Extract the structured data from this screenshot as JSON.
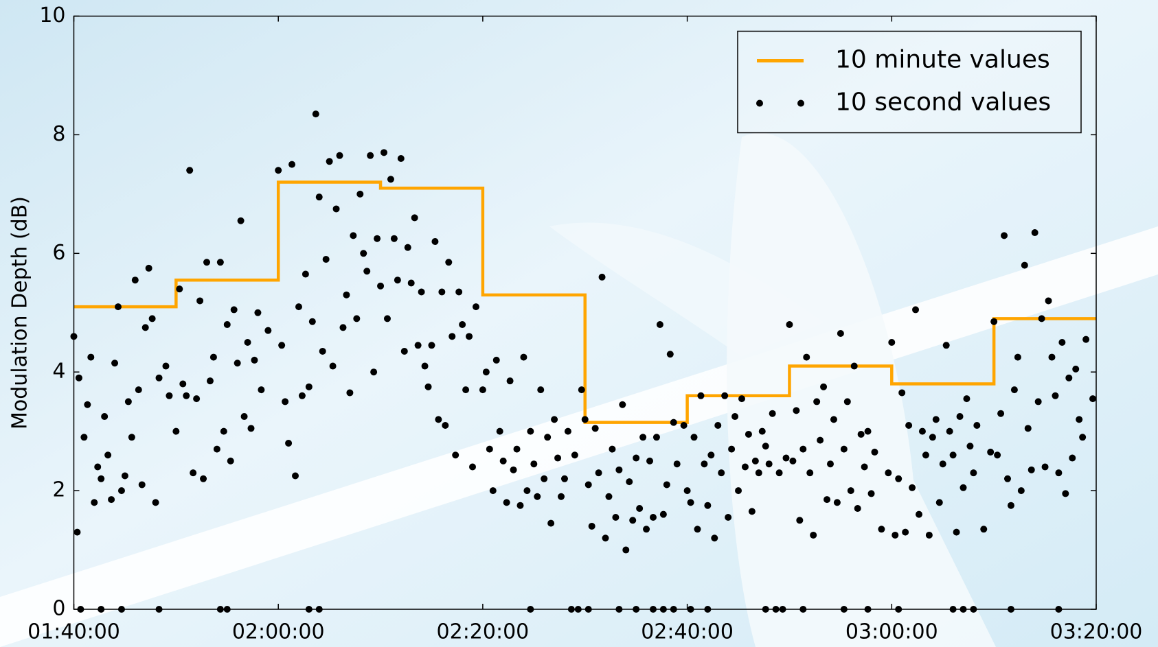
{
  "chart_data": {
    "type": "scatter",
    "y_label": "Modulation Depth (dB)",
    "xlim": [
      "01:40:00",
      "03:20:00"
    ],
    "xticks": [
      "01:40:00",
      "02:00:00",
      "02:20:00",
      "02:40:00",
      "03:00:00",
      "03:20:00"
    ],
    "ylim": [
      0,
      10
    ],
    "yticks": [
      0,
      2,
      4,
      6,
      8,
      10
    ],
    "grid": false,
    "legend": "upper right",
    "series": [
      {
        "name": "10 minute values",
        "type": "step",
        "color": "#ffa500",
        "x": [
          "01:40:00",
          "01:50:00",
          "02:00:00",
          "02:10:00",
          "02:20:00",
          "02:30:00",
          "02:40:00",
          "02:50:00",
          "03:00:00",
          "03:10:00",
          "03:20:00"
        ],
        "values": [
          5.1,
          5.55,
          7.2,
          7.1,
          5.3,
          3.15,
          3.6,
          4.1,
          3.8,
          4.9,
          4.9
        ]
      },
      {
        "name": "10 second values",
        "type": "scatter",
        "color": "#000000",
        "x": [
          "01:40:00",
          "01:40:20",
          "01:40:30",
          "01:41:00",
          "01:41:20",
          "01:41:40",
          "01:42:00",
          "01:42:20",
          "01:42:40",
          "01:43:00",
          "01:43:20",
          "01:43:40",
          "01:44:00",
          "01:44:20",
          "01:44:40",
          "01:45:00",
          "01:45:20",
          "01:45:40",
          "01:46:00",
          "01:46:20",
          "01:46:40",
          "01:47:00",
          "01:47:20",
          "01:47:40",
          "01:48:00",
          "01:48:20",
          "01:49:00",
          "01:49:20",
          "01:50:00",
          "01:50:20",
          "01:50:40",
          "01:51:00",
          "01:51:20",
          "01:51:40",
          "01:52:00",
          "01:52:20",
          "01:52:40",
          "01:53:00",
          "01:53:20",
          "01:53:40",
          "01:54:00",
          "01:54:20",
          "01:54:40",
          "01:55:00",
          "01:55:20",
          "01:55:40",
          "01:56:00",
          "01:56:20",
          "01:56:40",
          "01:57:00",
          "01:57:20",
          "01:57:40",
          "01:58:00",
          "01:58:20",
          "01:59:00",
          "02:00:00",
          "02:00:20",
          "02:00:40",
          "02:01:00",
          "02:01:20",
          "02:01:40",
          "02:02:00",
          "02:02:20",
          "02:02:40",
          "02:03:00",
          "02:03:20",
          "02:03:40",
          "02:04:00",
          "02:04:20",
          "02:04:40",
          "02:05:00",
          "02:05:20",
          "02:05:40",
          "02:06:00",
          "02:06:20",
          "02:06:40",
          "02:07:00",
          "02:07:20",
          "02:07:40",
          "02:08:00",
          "02:08:20",
          "02:08:40",
          "02:09:00",
          "02:09:20",
          "02:09:40",
          "02:10:00",
          "02:10:20",
          "02:10:40",
          "02:11:00",
          "02:11:20",
          "02:11:40",
          "02:12:00",
          "02:12:20",
          "02:12:40",
          "02:13:00",
          "02:13:20",
          "02:13:40",
          "02:14:00",
          "02:14:20",
          "02:14:40",
          "02:15:00",
          "02:15:20",
          "02:15:40",
          "02:16:00",
          "02:16:20",
          "02:16:40",
          "02:17:00",
          "02:17:20",
          "02:17:40",
          "02:18:00",
          "02:18:20",
          "02:18:40",
          "02:19:00",
          "02:19:20",
          "02:20:00",
          "02:20:20",
          "02:20:40",
          "02:21:00",
          "02:21:20",
          "02:21:40",
          "02:22:00",
          "02:22:20",
          "02:22:40",
          "02:23:00",
          "02:23:20",
          "02:23:40",
          "02:24:00",
          "02:24:20",
          "02:24:40",
          "02:25:00",
          "02:25:20",
          "02:25:40",
          "02:26:00",
          "02:26:20",
          "02:26:40",
          "02:27:00",
          "02:27:20",
          "02:27:40",
          "02:28:00",
          "02:28:20",
          "02:29:00",
          "02:29:40",
          "02:30:00",
          "02:30:20",
          "02:30:40",
          "02:31:00",
          "02:31:20",
          "02:31:40",
          "02:32:00",
          "02:32:20",
          "02:32:40",
          "02:33:00",
          "02:33:20",
          "02:33:40",
          "02:34:00",
          "02:34:20",
          "02:34:40",
          "02:35:00",
          "02:35:20",
          "02:35:40",
          "02:36:00",
          "02:36:20",
          "02:36:40",
          "02:37:00",
          "02:37:20",
          "02:37:40",
          "02:38:00",
          "02:38:20",
          "02:38:40",
          "02:39:00",
          "02:39:40",
          "02:40:00",
          "02:40:20",
          "02:40:40",
          "02:41:00",
          "02:41:20",
          "02:41:40",
          "02:42:00",
          "02:42:20",
          "02:42:40",
          "02:43:00",
          "02:43:20",
          "02:43:40",
          "02:44:00",
          "02:44:20",
          "02:44:40",
          "02:45:00",
          "02:45:20",
          "02:45:40",
          "02:46:00",
          "02:46:20",
          "02:46:40",
          "02:47:00",
          "02:47:20",
          "02:47:40",
          "02:48:00",
          "02:48:20",
          "02:49:00",
          "02:49:40",
          "02:50:00",
          "02:50:20",
          "02:50:40",
          "02:51:00",
          "02:51:20",
          "02:51:40",
          "02:52:00",
          "02:52:20",
          "02:52:40",
          "02:53:00",
          "02:53:20",
          "02:53:40",
          "02:54:00",
          "02:54:20",
          "02:54:40",
          "02:55:00",
          "02:55:20",
          "02:55:40",
          "02:56:00",
          "02:56:20",
          "02:56:40",
          "02:57:00",
          "02:57:20",
          "02:57:40",
          "02:58:00",
          "02:58:20",
          "02:59:00",
          "02:59:40",
          "03:00:00",
          "03:00:20",
          "03:00:40",
          "03:01:00",
          "03:01:20",
          "03:01:40",
          "03:02:00",
          "03:02:20",
          "03:02:40",
          "03:03:00",
          "03:03:20",
          "03:03:40",
          "03:04:00",
          "03:04:20",
          "03:04:40",
          "03:05:00",
          "03:05:20",
          "03:05:40",
          "03:06:00",
          "03:06:20",
          "03:06:40",
          "03:07:00",
          "03:07:20",
          "03:07:40",
          "03:08:00",
          "03:08:20",
          "03:09:00",
          "03:09:40",
          "03:10:00",
          "03:10:20",
          "03:10:40",
          "03:11:00",
          "03:11:20",
          "03:11:40",
          "03:12:00",
          "03:12:20",
          "03:12:40",
          "03:13:00",
          "03:13:20",
          "03:13:40",
          "03:14:00",
          "03:14:20",
          "03:14:40",
          "03:15:00",
          "03:15:20",
          "03:15:40",
          "03:16:00",
          "03:16:20",
          "03:16:40",
          "03:17:00",
          "03:17:20",
          "03:17:40",
          "03:18:00",
          "03:18:20",
          "03:18:40",
          "03:19:00",
          "03:19:40",
          "01:40:40",
          "01:42:40",
          "01:44:40",
          "01:48:20",
          "01:54:20",
          "01:55:00",
          "02:03:00",
          "02:04:00",
          "02:24:40",
          "02:28:40",
          "02:29:20",
          "02:30:20",
          "02:33:20",
          "02:35:00",
          "02:36:40",
          "02:37:40",
          "02:38:40",
          "02:40:20",
          "02:42:00",
          "02:47:40",
          "02:48:40",
          "02:49:20",
          "02:51:20",
          "02:55:20",
          "02:57:40",
          "03:00:40",
          "03:06:00",
          "03:07:00",
          "03:08:00",
          "03:11:40",
          "03:16:20"
        ],
        "values": [
          4.6,
          1.3,
          3.9,
          2.9,
          3.45,
          4.25,
          1.8,
          2.4,
          2.2,
          3.25,
          2.6,
          1.85,
          4.15,
          5.1,
          2.0,
          2.25,
          3.5,
          2.9,
          5.55,
          3.7,
          2.1,
          4.75,
          5.75,
          4.9,
          1.8,
          3.9,
          4.1,
          3.6,
          3.0,
          5.4,
          3.8,
          3.6,
          7.4,
          2.3,
          3.55,
          5.2,
          2.2,
          5.85,
          3.85,
          4.25,
          2.7,
          5.85,
          3.0,
          4.8,
          2.5,
          5.05,
          4.15,
          6.55,
          3.25,
          4.5,
          3.05,
          4.2,
          5.0,
          3.7,
          4.7,
          7.4,
          4.45,
          3.5,
          2.8,
          7.5,
          2.25,
          5.1,
          3.6,
          5.65,
          3.75,
          4.85,
          8.35,
          6.95,
          4.35,
          5.9,
          7.55,
          4.1,
          6.75,
          7.65,
          4.75,
          5.3,
          3.65,
          6.3,
          4.9,
          7.0,
          6.0,
          5.7,
          7.65,
          4.0,
          6.25,
          5.45,
          7.7,
          4.9,
          7.25,
          6.25,
          5.55,
          7.6,
          4.35,
          6.1,
          5.5,
          6.6,
          4.45,
          5.35,
          4.1,
          3.75,
          4.45,
          6.2,
          3.2,
          5.35,
          3.1,
          5.85,
          4.6,
          2.6,
          5.35,
          4.8,
          3.7,
          4.6,
          2.4,
          5.1,
          3.7,
          4.0,
          2.7,
          2.0,
          4.2,
          3.0,
          2.5,
          1.8,
          3.85,
          2.35,
          2.7,
          1.75,
          4.25,
          2.0,
          3.0,
          2.45,
          1.9,
          3.7,
          2.2,
          2.9,
          1.45,
          3.2,
          2.55,
          1.9,
          2.2,
          3.0,
          2.6,
          3.7,
          3.2,
          2.1,
          1.4,
          3.05,
          2.3,
          5.6,
          1.2,
          1.9,
          2.7,
          1.55,
          2.35,
          3.45,
          1.0,
          2.15,
          1.5,
          2.55,
          1.7,
          2.9,
          1.35,
          2.5,
          1.55,
          2.9,
          4.8,
          1.6,
          2.1,
          4.3,
          3.15,
          2.45,
          3.1,
          2.0,
          1.8,
          2.9,
          1.35,
          3.6,
          2.45,
          1.75,
          2.6,
          1.2,
          3.1,
          2.3,
          3.6,
          1.55,
          2.7,
          3.25,
          2.0,
          3.55,
          2.4,
          2.95,
          1.65,
          2.5,
          2.3,
          3.0,
          2.75,
          2.45,
          3.3,
          2.3,
          2.55,
          4.8,
          2.5,
          3.35,
          1.5,
          2.7,
          4.25,
          2.3,
          1.25,
          3.5,
          2.85,
          3.75,
          1.85,
          2.45,
          3.2,
          1.8,
          4.65,
          2.7,
          3.5,
          2.0,
          4.1,
          1.7,
          2.95,
          2.4,
          3.0,
          1.95,
          2.65,
          1.35,
          2.3,
          4.5,
          1.25,
          2.2,
          3.65,
          1.3,
          3.1,
          2.05,
          5.05,
          1.6,
          3.0,
          2.6,
          1.25,
          2.9,
          3.2,
          1.8,
          2.45,
          4.45,
          3.0,
          2.6,
          1.3,
          3.25,
          2.05,
          3.55,
          2.75,
          2.3,
          3.1,
          1.35,
          2.65,
          4.85,
          2.6,
          3.3,
          6.3,
          2.2,
          1.75,
          3.7,
          4.25,
          2.0,
          5.8,
          3.05,
          2.35,
          6.35,
          3.5,
          4.9,
          2.4,
          5.2,
          4.25,
          3.6,
          2.3,
          4.5,
          1.95,
          3.9,
          2.55,
          4.05,
          3.2,
          2.9,
          4.55,
          3.55,
          0,
          0,
          0,
          0,
          0,
          0,
          0,
          0,
          0,
          0,
          0,
          0,
          0,
          0,
          0,
          0,
          0,
          0,
          0,
          0,
          0,
          0,
          0,
          0,
          0,
          0,
          0,
          0,
          0,
          0,
          0
        ]
      }
    ]
  }
}
